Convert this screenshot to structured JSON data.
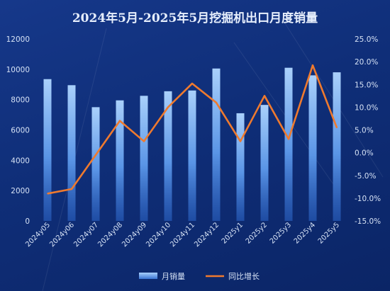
{
  "chart_data": {
    "type": "bar+line",
    "title": "2024年5月-2025年5月挖掘机出口月度销量",
    "categories": [
      "2024y05",
      "2024y06",
      "2024y07",
      "2024y08",
      "2024y09",
      "2024y10",
      "2024y11",
      "2024y12",
      "2025y1",
      "2025y2",
      "2025y3",
      "2025y4",
      "2025y5"
    ],
    "series": [
      {
        "name": "月销量",
        "type": "bar",
        "axis": "left",
        "values": [
          9350,
          8950,
          7500,
          7950,
          8250,
          8550,
          8600,
          10050,
          7100,
          7650,
          10100,
          9600,
          9800
        ]
      },
      {
        "name": "同比增长",
        "type": "line",
        "axis": "right",
        "values": [
          -9.0,
          -8.0,
          -0.5,
          7.0,
          2.5,
          10.0,
          15.2,
          11.0,
          2.5,
          12.5,
          3.0,
          19.2,
          5.5
        ]
      }
    ],
    "y_left": {
      "min": 0,
      "max": 12000,
      "ticks": [
        "0",
        "2000",
        "4000",
        "6000",
        "8000",
        "10000",
        "12000"
      ]
    },
    "y_right": {
      "min": -15,
      "max": 25,
      "ticks": [
        "-15.0%",
        "-10.0%",
        "-5.0%",
        "0.0%",
        "5.0%",
        "10.0%",
        "15.0%",
        "20.0%",
        "25.0%"
      ]
    },
    "grid": false,
    "legend": "bottom-center",
    "colors": {
      "bar_top": "#7fb3f0",
      "bar_bottom": "#2f6fd0",
      "line": "#ef7a2e",
      "text": "#d6e2f5",
      "background": "#0f2e78"
    }
  }
}
